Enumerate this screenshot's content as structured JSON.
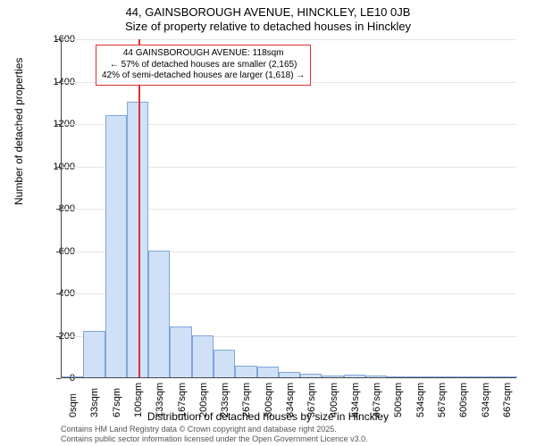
{
  "title_line1": "44, GAINSBOROUGH AVENUE, HINCKLEY, LE10 0JB",
  "title_line2": "Size of property relative to detached houses in Hinckley",
  "y_axis_label": "Number of detached properties",
  "x_axis_label": "Distribution of detached houses by size in Hinckley",
  "footer_line1": "Contains HM Land Registry data © Crown copyright and database right 2025.",
  "footer_line2": "Contains public sector information licensed under the Open Government Licence v3.0.",
  "chart": {
    "type": "histogram",
    "background_color": "#ffffff",
    "grid_color": "#e5e5e5",
    "axis_color": "#444444",
    "bar_fill": "#cfe0f7",
    "bar_stroke": "#7fa6d9",
    "marker_color": "#e03030",
    "annotation_border": "#e03030",
    "ylim": [
      0,
      1600
    ],
    "y_ticks": [
      0,
      200,
      400,
      600,
      800,
      1000,
      1200,
      1400,
      1600
    ],
    "x_tick_labels": [
      "0sqm",
      "33sqm",
      "67sqm",
      "100sqm",
      "133sqm",
      "167sqm",
      "200sqm",
      "233sqm",
      "267sqm",
      "300sqm",
      "334sqm",
      "367sqm",
      "400sqm",
      "434sqm",
      "467sqm",
      "500sqm",
      "534sqm",
      "567sqm",
      "600sqm",
      "634sqm",
      "667sqm"
    ],
    "values": [
      0,
      220,
      1240,
      1300,
      600,
      240,
      200,
      130,
      55,
      50,
      25,
      18,
      10,
      14,
      8,
      5,
      4,
      3,
      2,
      2,
      2
    ],
    "marker_bin_index": 3,
    "annotation": {
      "line1": "44 GAINSBOROUGH AVENUE: 118sqm",
      "line2": "← 57% of detached houses are smaller (2,165)",
      "line3": "42% of semi-detached houses are larger (1,618) →"
    },
    "title_fontsize": 13,
    "axis_label_fontsize": 12,
    "tick_fontsize": 11,
    "annotation_fontsize": 10,
    "footer_fontsize": 9
  }
}
